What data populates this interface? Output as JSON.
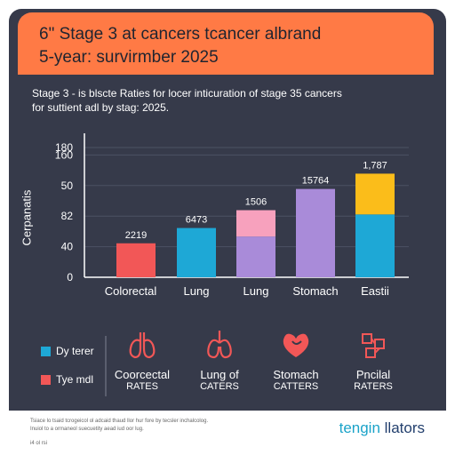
{
  "header": {
    "title_line1": "6\" Stage 3 at cancers tcancer albrand",
    "title_line2": "5-year: survirmber 2025"
  },
  "subtitle": {
    "line1": "Stage 3 - is blscte Raties for locer inticuration of stage 35 cancers",
    "line2": "for suttient adl by stag: 2025."
  },
  "colors": {
    "banner": "#ff7a45",
    "panel": "#363a4a",
    "red": "#f25757",
    "cyan": "#1ea8d6",
    "pink": "#f7a1bd",
    "purple": "#a98bd9",
    "yellow": "#fbbd1a"
  },
  "chart_data": {
    "type": "bar",
    "ylabel": "Cerpanatis",
    "ytick_labels": [
      "0",
      "40",
      "82",
      "50",
      "1б0",
      "180"
    ],
    "ylim": [
      0,
      180
    ],
    "grid": true,
    "bars": [
      {
        "category": "Colorectal",
        "label": "2219",
        "segments": [
          {
            "value": 40,
            "color": "#f25757"
          }
        ]
      },
      {
        "category": "Lung",
        "label": "6473",
        "segments": [
          {
            "value": 58,
            "color": "#1ea8d6"
          }
        ]
      },
      {
        "category": "Lung",
        "label": "1506",
        "segments": [
          {
            "value": 48,
            "color": "#a98bd9"
          },
          {
            "value": 31,
            "color": "#f7a1bd"
          }
        ]
      },
      {
        "category": "Stomach",
        "label": "15764",
        "segments": [
          {
            "value": 104,
            "color": "#a98bd9"
          }
        ]
      },
      {
        "category": "Eastii",
        "label": "1,787",
        "segments": [
          {
            "value": 74,
            "color": "#1ea8d6"
          },
          {
            "value": 48,
            "color": "#fbbd1a"
          }
        ]
      }
    ]
  },
  "legend": [
    {
      "label": "Dy terer",
      "color": "#1ea8d6"
    },
    {
      "label": "Tye mdl",
      "color": "#f25757"
    }
  ],
  "organs": [
    {
      "icon": "lungs-icon",
      "line1": "Coorcectal",
      "line2": "RATES",
      "color": "#f25757"
    },
    {
      "icon": "lung-icon",
      "line1": "Lung of",
      "line2": "CATERS",
      "color": "#f25757"
    },
    {
      "icon": "stomach-icon",
      "line1": "Stomach",
      "line2": "CATTERS",
      "color": "#f25757"
    },
    {
      "icon": "network-icon",
      "line1": "Pncilal",
      "line2": "RATERS",
      "color": "#f25757"
    }
  ],
  "footer": {
    "note_line1": "Tsiace lo tsaid tcrogeicol ol adcaid thaud llor hur fore by tecsler inchalcolog.",
    "note_line2": "Inuiol to a ormaneol suecuetity aead iud oor lug.",
    "note_line3": "i4 ol rsi",
    "brand_part1": "tengin",
    "brand_part2": " llators"
  }
}
